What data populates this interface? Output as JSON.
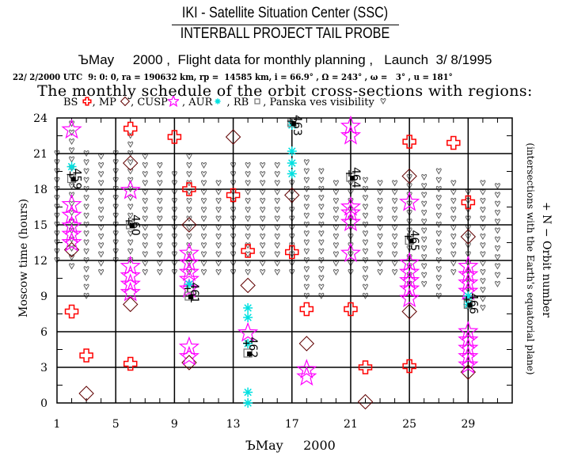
{
  "header": {
    "title_line1": "IKI - Satellite Situation Center (SSC)",
    "title_line2": "INTERBALL PROJECT TAIL PROBE",
    "title_line3": "ЪMay     2000 ,  Flight data for monthly planning ,   Launch  3/ 8/1995",
    "orbit_params": "22/ 2/2000 UTC  9: 0: 0, ra = 190632 km, rp =  14585 km, i = 66.9° , Ω = 243° , ω =   3° , u = 181°",
    "schedule_title": "The monthly schedule of the orbit cross-sections with regions:"
  },
  "legend": [
    {
      "label": "BS ",
      "symbol": "cross",
      "color": "#ff0000"
    },
    {
      "label": ", MP ",
      "symbol": "diamond",
      "color": "#600000"
    },
    {
      "label": ", CUSP",
      "symbol": "star",
      "color": "#ff00ff"
    },
    {
      "label": " , AUR",
      "symbol": "asterisk",
      "color": "#00e0e0"
    },
    {
      "label": " , RB ",
      "symbol": "square",
      "color": "#707070"
    },
    {
      "label": ", Panska ves visibility ",
      "symbol": "heart",
      "color": "#606060"
    }
  ],
  "chart_data": {
    "type": "scatter",
    "title": "The monthly schedule of the orbit cross-sections with regions",
    "xlabel": "ЪMay     2000",
    "ylabel": "Moscow time (hours)",
    "right_label": "+ N − Orbit number",
    "right_sublabel": "(intersections with the Earth's equatorial plane)",
    "xlim": [
      1,
      32
    ],
    "ylim": [
      0,
      24
    ],
    "xticks": [
      1,
      5,
      9,
      13,
      17,
      21,
      25,
      29
    ],
    "yticks": [
      0,
      3,
      6,
      9,
      12,
      15,
      18,
      21,
      24
    ],
    "grid": true,
    "series": [
      {
        "name": "BS",
        "symbol": "cross",
        "color": "#ff0000",
        "points": [
          [
            2,
            7.7
          ],
          [
            3,
            4.0
          ],
          [
            6,
            23.1
          ],
          [
            6,
            3.3
          ],
          [
            9,
            22.4
          ],
          [
            10,
            18.0
          ],
          [
            13,
            17.5
          ],
          [
            14,
            12.8
          ],
          [
            17,
            12.7
          ],
          [
            18,
            7.9
          ],
          [
            21,
            7.9
          ],
          [
            22,
            3.0
          ],
          [
            25,
            22.0
          ],
          [
            25,
            3.1
          ],
          [
            28,
            21.9
          ],
          [
            29,
            16.9
          ]
        ]
      },
      {
        "name": "MP",
        "symbol": "diamond",
        "color": "#600000",
        "points": [
          [
            2,
            12.9
          ],
          [
            3,
            0.8
          ],
          [
            6,
            20.2
          ],
          [
            6,
            8.3
          ],
          [
            10,
            15.0
          ],
          [
            10,
            3.4
          ],
          [
            13,
            22.4
          ],
          [
            14,
            9.9
          ],
          [
            17,
            17.5
          ],
          [
            18,
            5.0
          ],
          [
            22,
            0.1
          ],
          [
            25,
            19.1
          ],
          [
            25,
            7.7
          ],
          [
            29,
            14.0
          ],
          [
            29,
            2.6
          ]
        ]
      },
      {
        "name": "CUSP",
        "symbol": "star",
        "color": "#ff00ff",
        "points": [
          [
            2,
            23.0
          ],
          [
            2,
            16.7
          ],
          [
            2,
            15.8
          ],
          [
            2,
            14.9
          ],
          [
            2,
            14.2
          ],
          [
            2,
            13.5
          ],
          [
            6,
            17.9
          ],
          [
            6,
            11.5
          ],
          [
            6,
            10.7
          ],
          [
            6,
            10.0
          ],
          [
            6,
            9.3
          ],
          [
            10,
            12.6
          ],
          [
            10,
            11.8
          ],
          [
            10,
            11.0
          ],
          [
            10,
            10.4
          ],
          [
            10,
            9.6
          ],
          [
            10,
            4.7
          ],
          [
            10,
            3.9
          ],
          [
            14,
            5.9
          ],
          [
            18,
            2.8
          ],
          [
            18,
            2.2
          ],
          [
            21,
            23.3
          ],
          [
            21,
            22.5
          ],
          [
            21,
            16.5
          ],
          [
            21,
            16.0
          ],
          [
            21,
            15.2
          ],
          [
            21,
            12.6
          ],
          [
            25,
            16.9
          ],
          [
            25,
            11.8
          ],
          [
            25,
            11.0
          ],
          [
            25,
            10.3
          ],
          [
            25,
            9.6
          ],
          [
            25,
            8.8
          ],
          [
            29,
            11.5
          ],
          [
            29,
            10.8
          ],
          [
            29,
            10.1
          ],
          [
            29,
            9.4
          ],
          [
            29,
            6.0
          ],
          [
            29,
            5.3
          ],
          [
            29,
            4.6
          ],
          [
            29,
            3.9
          ],
          [
            29,
            3.2
          ]
        ]
      },
      {
        "name": "AUR",
        "symbol": "asterisk",
        "color": "#00e0e0",
        "points": [
          [
            2,
            19.9
          ],
          [
            10,
            10.0
          ],
          [
            14,
            8.0
          ],
          [
            14,
            7.2
          ],
          [
            14,
            5.0
          ],
          [
            14,
            0.9
          ],
          [
            14,
            0.0
          ],
          [
            17,
            23.4
          ],
          [
            17,
            21.2
          ],
          [
            17,
            20.2
          ],
          [
            17,
            19.3
          ],
          [
            29,
            9.0
          ],
          [
            29,
            8.3
          ]
        ]
      },
      {
        "name": "RB",
        "symbol": "square",
        "color": "#707070",
        "points": [
          [
            2,
            18.9
          ],
          [
            6,
            15.0
          ],
          [
            10,
            9.0
          ],
          [
            14,
            4.2
          ],
          [
            17,
            23.6
          ],
          [
            21,
            19.0
          ],
          [
            25,
            13.7
          ],
          [
            29,
            8.3
          ]
        ]
      }
    ],
    "orbits": [
      {
        "number": "459",
        "day": 2,
        "hour": 19.5
      },
      {
        "number": "460",
        "day": 6,
        "hour": 15.6
      },
      {
        "number": "461",
        "day": 10,
        "hour": 9.9
      },
      {
        "number": "462",
        "day": 14,
        "hour": 5.3
      },
      {
        "number": "463",
        "day": 17,
        "hour": 24.0
      },
      {
        "number": "464",
        "day": 21,
        "hour": 19.6
      },
      {
        "number": "465",
        "day": 25,
        "hour": 14.3
      },
      {
        "number": "466",
        "day": 29,
        "hour": 9.0
      }
    ],
    "visibility": [
      [
        1,
        12,
        21
      ],
      [
        2,
        11.5,
        23.5
      ],
      [
        3,
        9,
        21.5
      ],
      [
        4,
        11,
        21
      ],
      [
        5,
        12,
        21
      ],
      [
        6,
        12,
        23
      ],
      [
        7,
        11,
        21
      ],
      [
        8,
        11,
        20.5
      ],
      [
        9,
        11,
        19.5
      ],
      [
        10,
        11,
        21
      ],
      [
        11,
        11,
        20.5
      ],
      [
        12,
        11,
        19
      ],
      [
        13,
        11,
        20
      ],
      [
        14,
        11,
        20.5
      ],
      [
        15,
        11,
        20.5
      ],
      [
        16,
        11,
        20
      ],
      [
        17,
        11,
        19
      ],
      [
        18,
        9,
        20.5
      ],
      [
        19,
        9,
        20
      ],
      [
        20,
        11,
        19
      ],
      [
        21,
        11,
        19
      ],
      [
        22,
        9,
        19
      ],
      [
        23,
        11,
        18.5
      ],
      [
        24,
        11,
        18.5
      ],
      [
        25,
        10,
        19.5
      ],
      [
        26,
        10,
        19.5
      ],
      [
        27,
        9,
        19.5
      ],
      [
        28,
        11,
        19
      ],
      [
        29,
        8,
        18
      ],
      [
        30,
        8,
        18.5
      ],
      [
        31,
        10,
        18.5
      ]
    ]
  }
}
